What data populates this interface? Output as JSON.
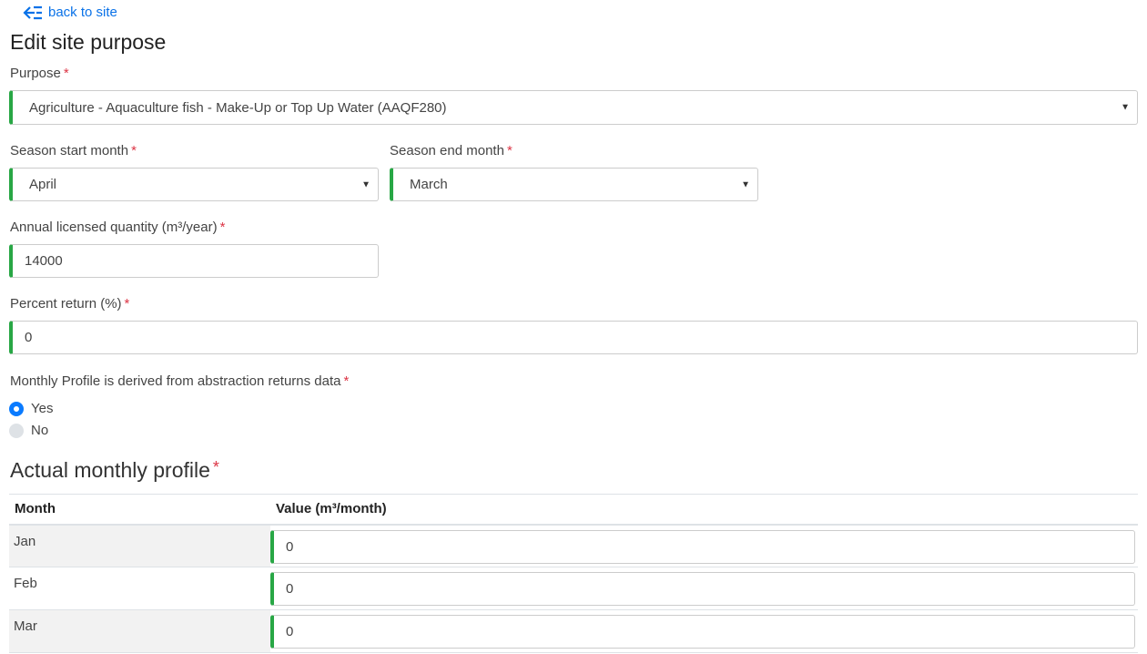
{
  "back_link": {
    "label": "back to site",
    "icon": "arrow-left-icon"
  },
  "title": "Edit site purpose",
  "required_marker": "*",
  "purpose": {
    "label": "Purpose",
    "value": "Agriculture - Aquaculture fish - Make-Up or Top Up Water (AAQF280)"
  },
  "season_start": {
    "label": "Season start month",
    "value": "April"
  },
  "season_end": {
    "label": "Season end month",
    "value": "March"
  },
  "annual_quantity": {
    "label": "Annual licensed quantity (m³/year)",
    "value": "14000"
  },
  "percent_return": {
    "label": "Percent return (%)",
    "value": "0"
  },
  "derived": {
    "label": "Monthly Profile is derived from abstraction returns data",
    "options": [
      {
        "label": "Yes",
        "checked": true
      },
      {
        "label": "No",
        "checked": false
      }
    ]
  },
  "profile": {
    "heading": "Actual monthly profile",
    "columns": [
      "Month",
      "Value (m³/month)"
    ],
    "rows": [
      {
        "month": "Jan",
        "value": "0"
      },
      {
        "month": "Feb",
        "value": "0"
      },
      {
        "month": "Mar",
        "value": "0"
      }
    ]
  },
  "colors": {
    "accent": "#0a7bff",
    "valid": "#28a745",
    "required": "#dc3545"
  }
}
